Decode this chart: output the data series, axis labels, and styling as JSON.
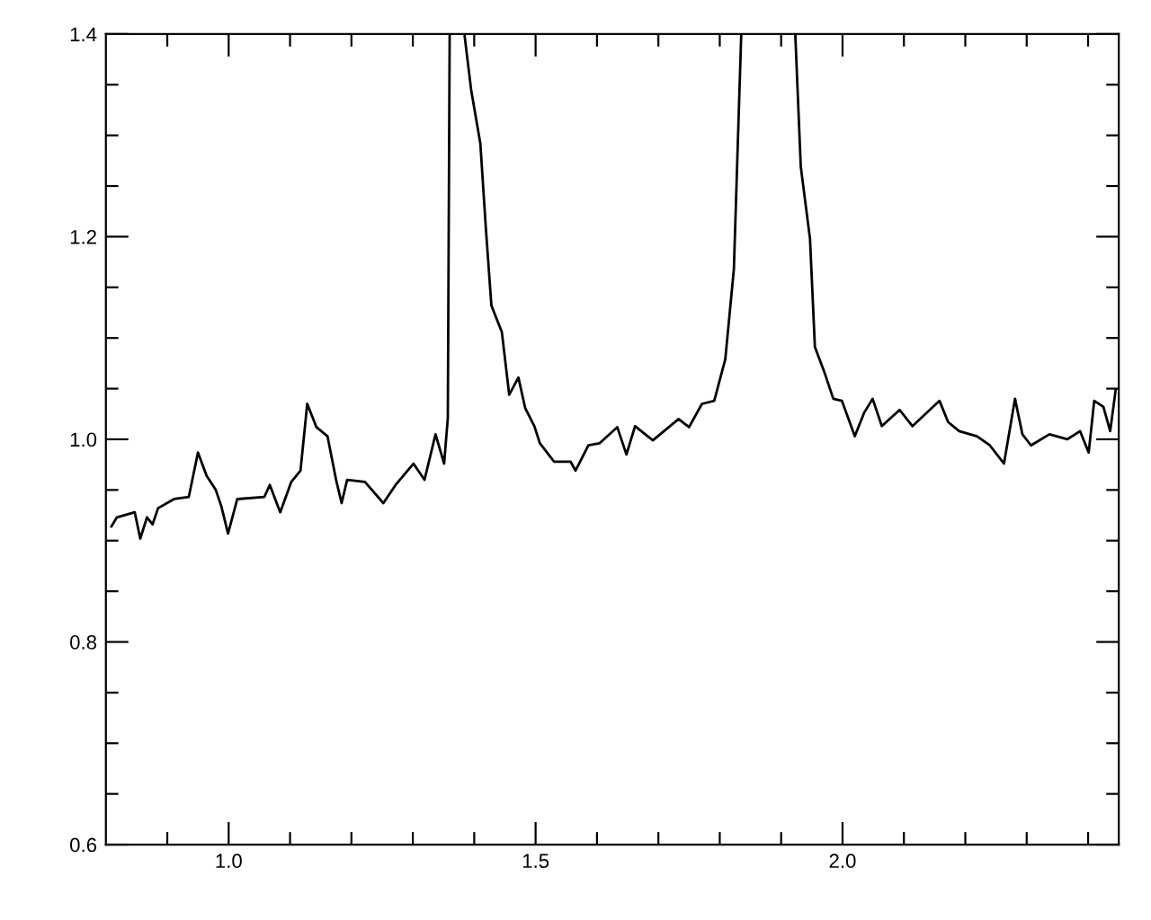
{
  "chart_data": {
    "type": "line",
    "color": "#000000",
    "line_style": "solid",
    "marker": "none",
    "grid": false,
    "legend": false,
    "x": [
      0.809,
      0.818,
      0.847,
      0.856,
      0.867,
      0.876,
      0.885,
      0.911,
      0.935,
      0.95,
      0.964,
      0.979,
      0.988,
      0.999,
      1.014,
      1.058,
      1.067,
      1.084,
      1.102,
      1.117,
      1.128,
      1.143,
      1.161,
      1.175,
      1.184,
      1.193,
      1.222,
      1.252,
      1.272,
      1.301,
      1.319,
      1.337,
      1.351,
      1.357,
      1.36,
      1.372,
      1.384,
      1.395,
      1.41,
      1.419,
      1.428,
      1.439,
      1.445,
      1.457,
      1.472,
      1.483,
      1.498,
      1.507,
      1.53,
      1.557,
      1.565,
      1.586,
      1.604,
      1.633,
      1.648,
      1.662,
      1.691,
      1.733,
      1.75,
      1.771,
      1.791,
      1.809,
      1.823,
      1.835,
      1.88,
      1.923,
      1.932,
      1.947,
      1.955,
      1.97,
      1.985,
      1.999,
      2.02,
      2.035,
      2.049,
      2.064,
      2.093,
      2.114,
      2.158,
      2.172,
      2.19,
      2.219,
      2.24,
      2.263,
      2.281,
      2.293,
      2.307,
      2.337,
      2.366,
      2.387,
      2.401,
      2.41,
      2.425,
      2.436,
      2.445
    ],
    "values": [
      0.914,
      0.923,
      0.928,
      0.902,
      0.923,
      0.916,
      0.932,
      0.941,
      0.943,
      0.987,
      0.964,
      0.95,
      0.934,
      0.907,
      0.941,
      0.943,
      0.955,
      0.928,
      0.958,
      0.969,
      1.035,
      1.012,
      1.003,
      0.96,
      0.937,
      0.96,
      0.958,
      0.937,
      0.955,
      0.976,
      0.96,
      1.005,
      0.976,
      1.021,
      1.4,
      null,
      1.4,
      1.345,
      1.292,
      1.208,
      1.132,
      1.115,
      1.106,
      1.044,
      1.061,
      1.031,
      1.013,
      0.996,
      0.978,
      0.978,
      0.969,
      0.994,
      0.996,
      1.012,
      0.985,
      1.013,
      0.999,
      1.02,
      1.012,
      1.035,
      1.038,
      1.079,
      1.168,
      1.4,
      null,
      1.4,
      1.269,
      1.198,
      1.091,
      1.067,
      1.04,
      1.038,
      1.003,
      1.026,
      1.04,
      1.013,
      1.029,
      1.013,
      1.038,
      1.017,
      1.008,
      1.003,
      0.994,
      0.976,
      1.04,
      1.005,
      0.994,
      1.005,
      1.0,
      1.008,
      0.987,
      1.038,
      1.032,
      1.008,
      1.049
    ],
    "xlim": [
      0.8,
      2.45
    ],
    "ylim": [
      0.6,
      1.4
    ],
    "xticks": [
      {
        "value": 0.9,
        "label": null
      },
      {
        "value": 1.0,
        "label": "1.0"
      },
      {
        "value": 1.1,
        "label": null
      },
      {
        "value": 1.2,
        "label": null
      },
      {
        "value": 1.3,
        "label": null
      },
      {
        "value": 1.4,
        "label": null
      },
      1.5,
      {
        "value": 1.6,
        "label": null
      },
      {
        "value": 1.7,
        "label": null
      },
      {
        "value": 1.8,
        "label": null
      },
      {
        "value": 1.9,
        "label": null
      },
      {
        "value": 2.0,
        "label": "2.0"
      },
      {
        "value": 2.1,
        "label": null
      },
      {
        "value": 2.2,
        "label": null
      },
      {
        "value": 2.3,
        "label": null
      },
      {
        "value": 2.4,
        "label": null
      }
    ],
    "yticks": [
      0.6,
      {
        "value": 0.65,
        "label": null
      },
      {
        "value": 0.7,
        "label": null
      },
      {
        "value": 0.75,
        "label": null
      },
      0.8,
      {
        "value": 0.85,
        "label": null
      },
      {
        "value": 0.9,
        "label": null
      },
      {
        "value": 0.95,
        "label": null
      },
      {
        "value": 1.0,
        "label": "1.0"
      },
      {
        "value": 1.05,
        "label": null
      },
      {
        "value": 1.1,
        "label": null
      },
      {
        "value": 1.15,
        "label": null
      },
      1.2,
      {
        "value": 1.25,
        "label": null
      },
      {
        "value": 1.3,
        "label": null
      },
      {
        "value": 1.35,
        "label": null
      },
      1.4
    ]
  }
}
